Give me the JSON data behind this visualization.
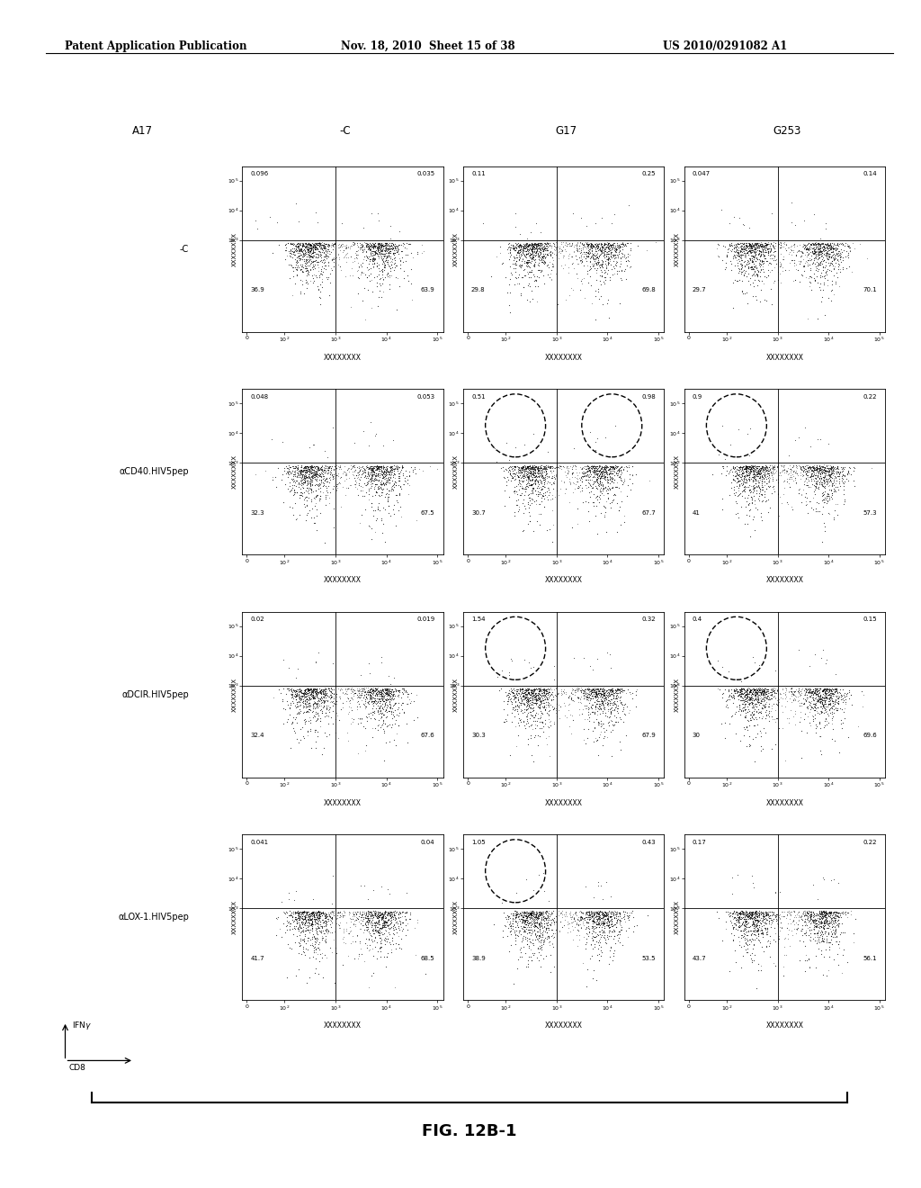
{
  "header_left": "Patent Application Publication",
  "header_mid": "Nov. 18, 2010  Sheet 15 of 38",
  "header_right": "US 2010/0291082 A1",
  "figure_label": "FIG. 12B-1",
  "col_headers": [
    "A17",
    "-C",
    "G17",
    "G253"
  ],
  "row_headers": [
    "-C",
    "αCD40.HIV5pep",
    "αDCIR.HIV5pep",
    "αLOX-1.HIV5pep"
  ],
  "x_axis_label": "XXXXXXXX",
  "y_axis_label": "XXXXXXXX",
  "plots": [
    [
      {
        "ul": "0.096",
        "ur": "0.035",
        "ll": "36.9",
        "lr": "63.9",
        "circle_ul": false,
        "circle_ur": false
      },
      {
        "ul": "0.11",
        "ur": "0.25",
        "ll": "29.8",
        "lr": "69.8",
        "circle_ul": false,
        "circle_ur": false
      },
      {
        "ul": "0.047",
        "ur": "0.14",
        "ll": "29.7",
        "lr": "70.1",
        "circle_ul": false,
        "circle_ur": false
      }
    ],
    [
      {
        "ul": "0.048",
        "ur": "0.053",
        "ll": "32.3",
        "lr": "67.5",
        "circle_ul": false,
        "circle_ur": false
      },
      {
        "ul": "0.51",
        "ur": "0.98",
        "ll": "30.7",
        "lr": "67.7",
        "circle_ul": true,
        "circle_ur": true
      },
      {
        "ul": "0.9",
        "ur": "0.22",
        "ll": "41",
        "lr": "57.3",
        "circle_ul": true,
        "circle_ur": false
      }
    ],
    [
      {
        "ul": "0.02",
        "ur": "0.019",
        "ll": "32.4",
        "lr": "67.6",
        "circle_ul": false,
        "circle_ur": false
      },
      {
        "ul": "1.54",
        "ur": "0.32",
        "ll": "30.3",
        "lr": "67.9",
        "circle_ul": true,
        "circle_ur": false
      },
      {
        "ul": "0.4",
        "ur": "0.15",
        "ll": "30",
        "lr": "69.6",
        "circle_ul": true,
        "circle_ur": false
      }
    ],
    [
      {
        "ul": "0.041",
        "ur": "0.04",
        "ll": "41.7",
        "lr": "68.5",
        "circle_ul": false,
        "circle_ur": false
      },
      {
        "ul": "1.05",
        "ur": "0.43",
        "ll": "38.9",
        "lr": "53.5",
        "circle_ul": true,
        "circle_ur": false
      },
      {
        "ul": "0.17",
        "ur": "0.22",
        "ll": "43.7",
        "lr": "56.1",
        "circle_ul": false,
        "circle_ur": false
      }
    ]
  ],
  "fig_width": 10.24,
  "fig_height": 13.2,
  "dpi": 100
}
